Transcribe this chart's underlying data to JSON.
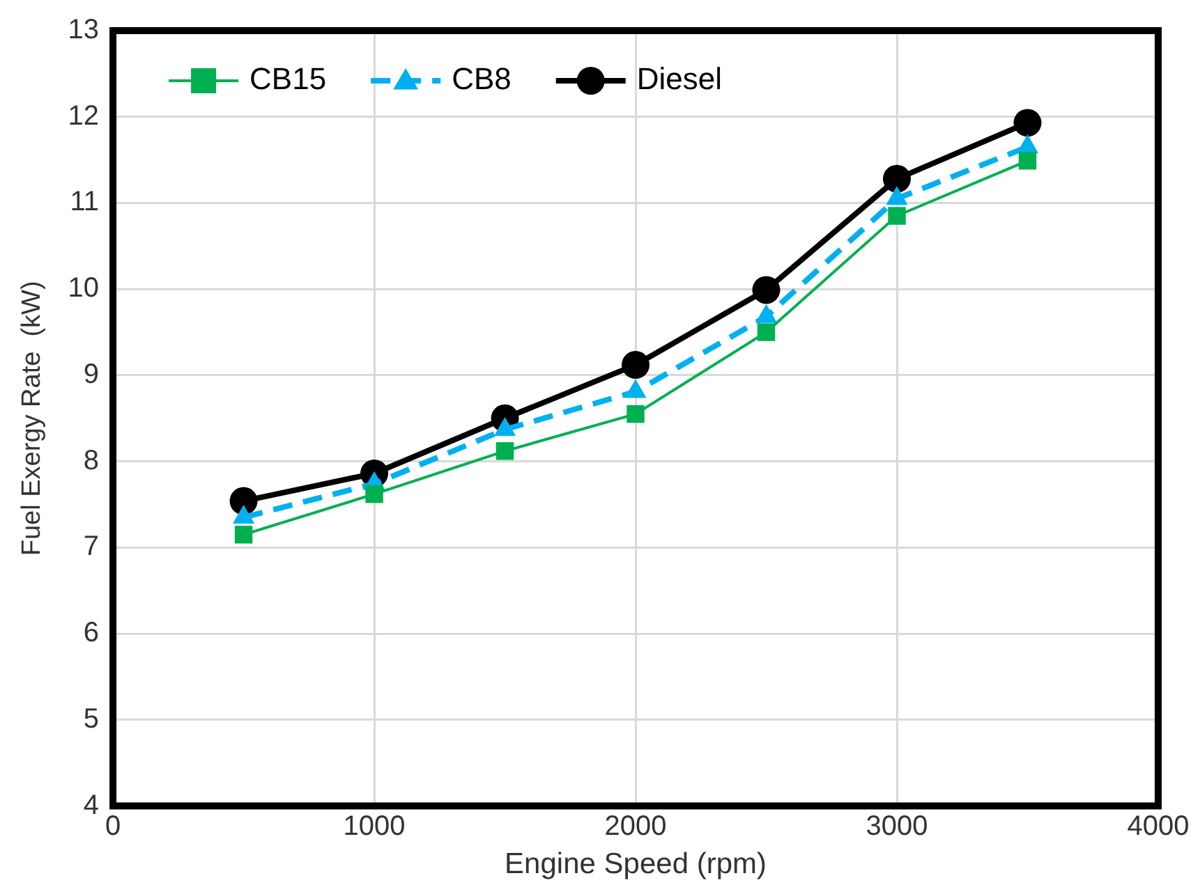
{
  "chart_data": {
    "type": "line",
    "xlabel": "Engine Speed (rpm)",
    "ylabel": "Fuel Exergy Rate  (kW)",
    "x": [
      500,
      1000,
      1500,
      2000,
      2500,
      3000,
      3500
    ],
    "series": [
      {
        "name": "CB15",
        "color": "#00b050",
        "marker": "square",
        "line_style": "solid",
        "values": [
          7.15,
          7.62,
          8.12,
          8.55,
          9.5,
          10.85,
          11.49
        ]
      },
      {
        "name": "CB8",
        "color": "#00b0f0",
        "marker": "triangle",
        "line_style": "dashed",
        "values": [
          7.35,
          7.74,
          8.37,
          8.81,
          9.68,
          11.05,
          11.65
        ]
      },
      {
        "name": "Diesel",
        "color": "#000000",
        "marker": "circle",
        "line_style": "solid",
        "values": [
          7.54,
          7.86,
          8.5,
          9.12,
          9.99,
          11.28,
          11.93
        ]
      }
    ],
    "xlim": [
      0,
      4000
    ],
    "xticks": [
      0,
      1000,
      2000,
      3000,
      4000
    ],
    "ylim": [
      4,
      13
    ],
    "yticks": [
      4,
      5,
      6,
      7,
      8,
      9,
      10,
      11,
      12,
      13
    ],
    "grid": true,
    "legend": "top left"
  }
}
